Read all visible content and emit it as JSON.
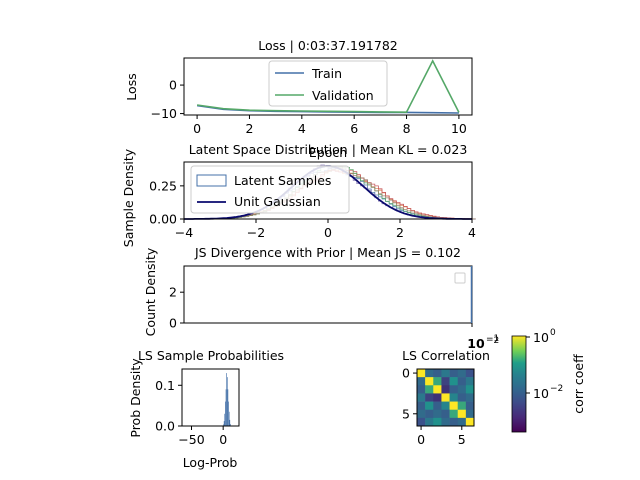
{
  "chart_data": [
    {
      "type": "line",
      "title": "Loss | 0:03:37.191782",
      "xlabel": "Epoch",
      "ylabel": "Loss",
      "xlim": [
        -0.5,
        10.5
      ],
      "ylim": [
        -10.5,
        9.5
      ],
      "xticks": [
        "0",
        "2",
        "4",
        "6",
        "8",
        "10"
      ],
      "yticks": [
        "−10",
        "0"
      ],
      "legend_position": "top-center",
      "x": [
        0,
        1,
        2,
        3,
        4,
        5,
        6,
        7,
        8,
        9,
        10
      ],
      "series": [
        {
          "name": "Train",
          "color": "#4470a8",
          "values": [
            -7.2,
            -8.5,
            -9.0,
            -9.2,
            -9.3,
            -9.4,
            -9.5,
            -9.6,
            -9.6,
            -9.7,
            -9.8
          ]
        },
        {
          "name": "Validation",
          "color": "#55a868",
          "values": [
            -7.0,
            -8.3,
            -8.8,
            -9.0,
            -9.1,
            -9.2,
            -9.3,
            -9.4,
            -9.5,
            8.5,
            -9.6
          ]
        }
      ]
    },
    {
      "type": "area",
      "title": "Latent Space Distribution | Mean KL = 0.023",
      "xlabel": "",
      "ylabel": "Sample Density",
      "xlim": [
        -4,
        4
      ],
      "ylim": [
        0,
        0.43
      ],
      "xticks": [
        "−4",
        "−2",
        "0",
        "2",
        "4"
      ],
      "yticks": [
        "0.00",
        "0.25"
      ],
      "legend_position": "top-left",
      "series": [
        {
          "name": "Latent Samples",
          "color": "#4470a8",
          "kind": "step-hist"
        },
        {
          "name": "Unit Gaussian",
          "color": "#0a0a6e",
          "kind": "line",
          "mean": 0,
          "std": 1
        }
      ],
      "extra_series_colors": [
        "#dd8452",
        "#c44e52",
        "#55a868",
        "#8172b2",
        "#937860"
      ]
    },
    {
      "type": "bar",
      "title": "JS Divergence with Prior | Mean JS = 0.102",
      "xlabel": "",
      "ylabel": "Count Density",
      "ylim": [
        0,
        3.7
      ],
      "yticks": [
        "0",
        "2"
      ],
      "xtick_label": "10",
      "xtick_label_exp": "−1",
      "xtick_label_overlap": "−2",
      "legend_position": "top-right",
      "values": [
        3.7
      ]
    },
    {
      "type": "bar",
      "title": "LS Sample Probabilities",
      "xlabel": "Log-Prob",
      "ylabel": "Prob Density",
      "xlim": [
        -65,
        25
      ],
      "ylim": [
        0,
        0.14
      ],
      "xticks": [
        "−50",
        "0"
      ],
      "yticks": [
        "0.0",
        "0.1"
      ],
      "color": "#4470a8",
      "bins_x": [
        0,
        1,
        2,
        3,
        4,
        5,
        6,
        7,
        8,
        9,
        10,
        11
      ],
      "values": [
        0.004,
        0.012,
        0.03,
        0.06,
        0.09,
        0.13,
        0.12,
        0.09,
        0.06,
        0.035,
        0.015,
        0.005
      ]
    },
    {
      "type": "heatmap",
      "title": "LS Correlation",
      "xticks": [
        "0",
        "5"
      ],
      "yticks": [
        "0",
        "5"
      ],
      "colorbar_label": "corr coeff",
      "colorbar_ticks": [
        "10",
        "10"
      ],
      "colorbar_tick_exps": [
        "0",
        "−2"
      ],
      "colorscale": "viridis",
      "values": [
        [
          1.0,
          0.35,
          0.3,
          0.4,
          0.3,
          0.35,
          0.25
        ],
        [
          0.35,
          1.0,
          0.6,
          0.2,
          0.5,
          0.3,
          0.4
        ],
        [
          0.3,
          0.6,
          1.0,
          0.15,
          0.3,
          0.35,
          0.5
        ],
        [
          0.4,
          0.2,
          0.15,
          1.0,
          0.45,
          0.3,
          0.35
        ],
        [
          0.3,
          0.5,
          0.3,
          0.45,
          1.0,
          0.6,
          0.3
        ],
        [
          0.35,
          0.3,
          0.35,
          0.3,
          0.6,
          1.0,
          0.35
        ],
        [
          0.25,
          0.4,
          0.5,
          0.35,
          0.3,
          0.35,
          1.0
        ]
      ]
    }
  ]
}
